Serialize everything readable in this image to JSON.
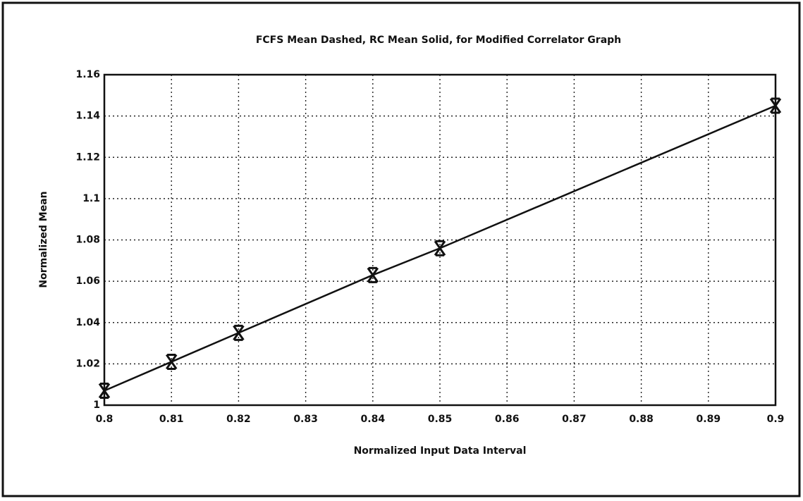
{
  "chart_data": {
    "type": "line",
    "title": "FCFS Mean Dashed, RC Mean Solid, for Modified Correlator Graph",
    "x_label": "Normalized Input Data Interval",
    "y_label": "Normalized Mean",
    "x": [
      0.8,
      0.81,
      0.82,
      0.84,
      0.85,
      0.9
    ],
    "values": [
      1.007,
      1.021,
      1.035,
      1.063,
      1.076,
      1.145
    ],
    "color": "#111111",
    "marker": "x",
    "grid": true,
    "xlim": [
      0.8,
      0.9
    ],
    "xticks": [
      0.8,
      0.81,
      0.82,
      0.83,
      0.84,
      0.85,
      0.86,
      0.87,
      0.88,
      0.89,
      0.9
    ],
    "ylim": [
      1,
      1.16
    ],
    "yticks": [
      1,
      1.02,
      1.04,
      1.06,
      1.08,
      1.1,
      1.12,
      1.14,
      1.16
    ]
  }
}
